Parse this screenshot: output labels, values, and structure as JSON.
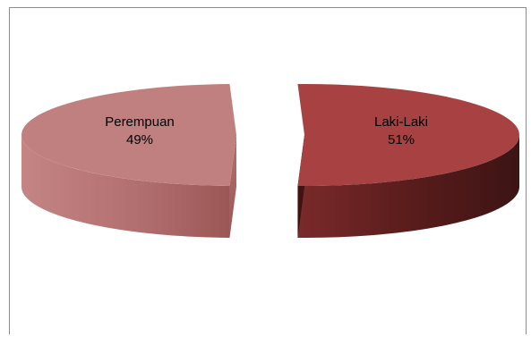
{
  "chart_data": {
    "type": "pie",
    "style": "3d-exploded",
    "slices": [
      {
        "label": "Perempuan",
        "value": 49,
        "percent_label": "49%",
        "color": "#c08080",
        "side_color": "#a86565"
      },
      {
        "label": "Laki-Laki",
        "value": 51,
        "percent_label": "51%",
        "color": "#a84242",
        "side_color": "#5e1f1f"
      }
    ],
    "legend": "none"
  }
}
